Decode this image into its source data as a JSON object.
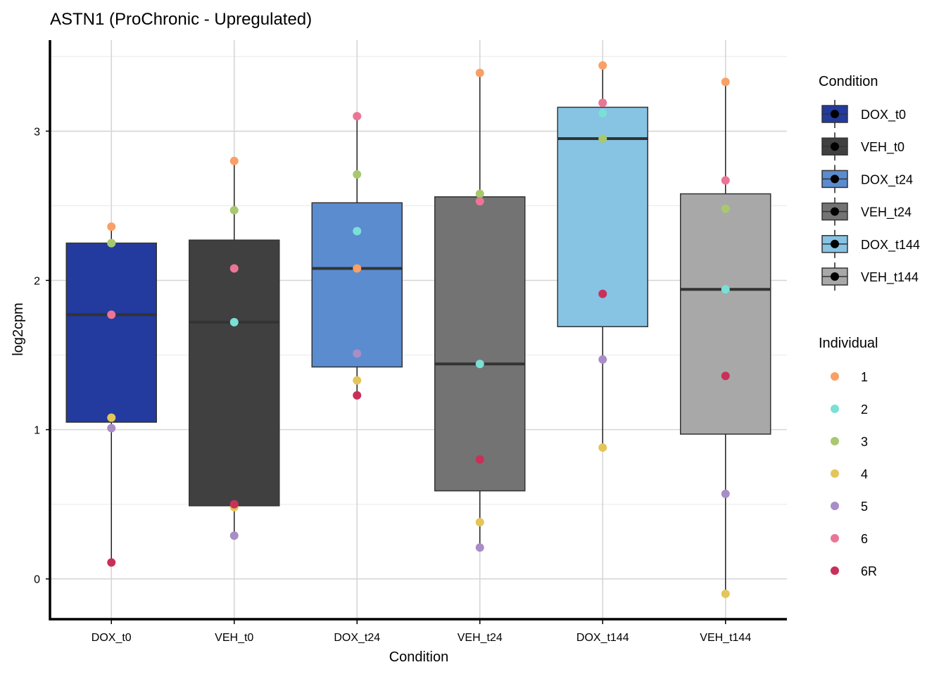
{
  "chart_data": {
    "type": "box",
    "title": "ASTN1 (ProChronic - Upregulated)",
    "xlabel": "Condition",
    "ylabel": "log2cpm",
    "ylim": [
      -0.27,
      3.61
    ],
    "yticks": [
      0,
      1,
      2,
      3
    ],
    "grid": true,
    "categories": [
      "DOX_t0",
      "VEH_t0",
      "DOX_t24",
      "VEH_t24",
      "DOX_t144",
      "VEH_t144"
    ],
    "box_colors": [
      "#233a9e",
      "#404040",
      "#5b8ccf",
      "#737373",
      "#87c3e3",
      "#a8a8a8"
    ],
    "boxes": [
      {
        "min": 0.11,
        "q1": 1.05,
        "median": 1.77,
        "q3": 2.25,
        "max": 2.36
      },
      {
        "min": 0.29,
        "q1": 0.49,
        "median": 1.72,
        "q3": 2.27,
        "max": 2.8
      },
      {
        "min": 1.23,
        "q1": 1.42,
        "median": 2.08,
        "q3": 2.52,
        "max": 3.1
      },
      {
        "min": 0.21,
        "q1": 0.59,
        "median": 1.44,
        "q3": 2.56,
        "max": 3.39
      },
      {
        "min": 0.88,
        "q1": 1.69,
        "median": 2.95,
        "q3": 3.16,
        "max": 3.44
      },
      {
        "min": -0.1,
        "q1": 0.97,
        "median": 1.94,
        "q3": 2.58,
        "max": 3.33
      }
    ],
    "individuals": [
      "1",
      "2",
      "3",
      "4",
      "5",
      "6",
      "6R"
    ],
    "individual_colors": [
      "#f9a066",
      "#7ae0d6",
      "#a8c86e",
      "#e3c55a",
      "#a98dc6",
      "#ea7595",
      "#c8305a"
    ],
    "points": [
      [
        2.36,
        2.25,
        2.25,
        1.08,
        1.01,
        1.77,
        0.11
      ],
      [
        2.8,
        1.72,
        2.47,
        0.48,
        0.29,
        2.08,
        0.5
      ],
      [
        2.08,
        2.33,
        2.71,
        1.33,
        1.51,
        3.1,
        1.23
      ],
      [
        3.39,
        1.44,
        2.58,
        0.38,
        0.21,
        2.53,
        0.8
      ],
      [
        3.44,
        3.12,
        2.95,
        0.88,
        1.47,
        3.19,
        1.91
      ],
      [
        3.33,
        1.94,
        2.48,
        -0.1,
        0.57,
        2.67,
        1.36
      ]
    ],
    "legend": {
      "position": "right",
      "condition_title": "Condition",
      "individual_title": "Individual"
    }
  }
}
